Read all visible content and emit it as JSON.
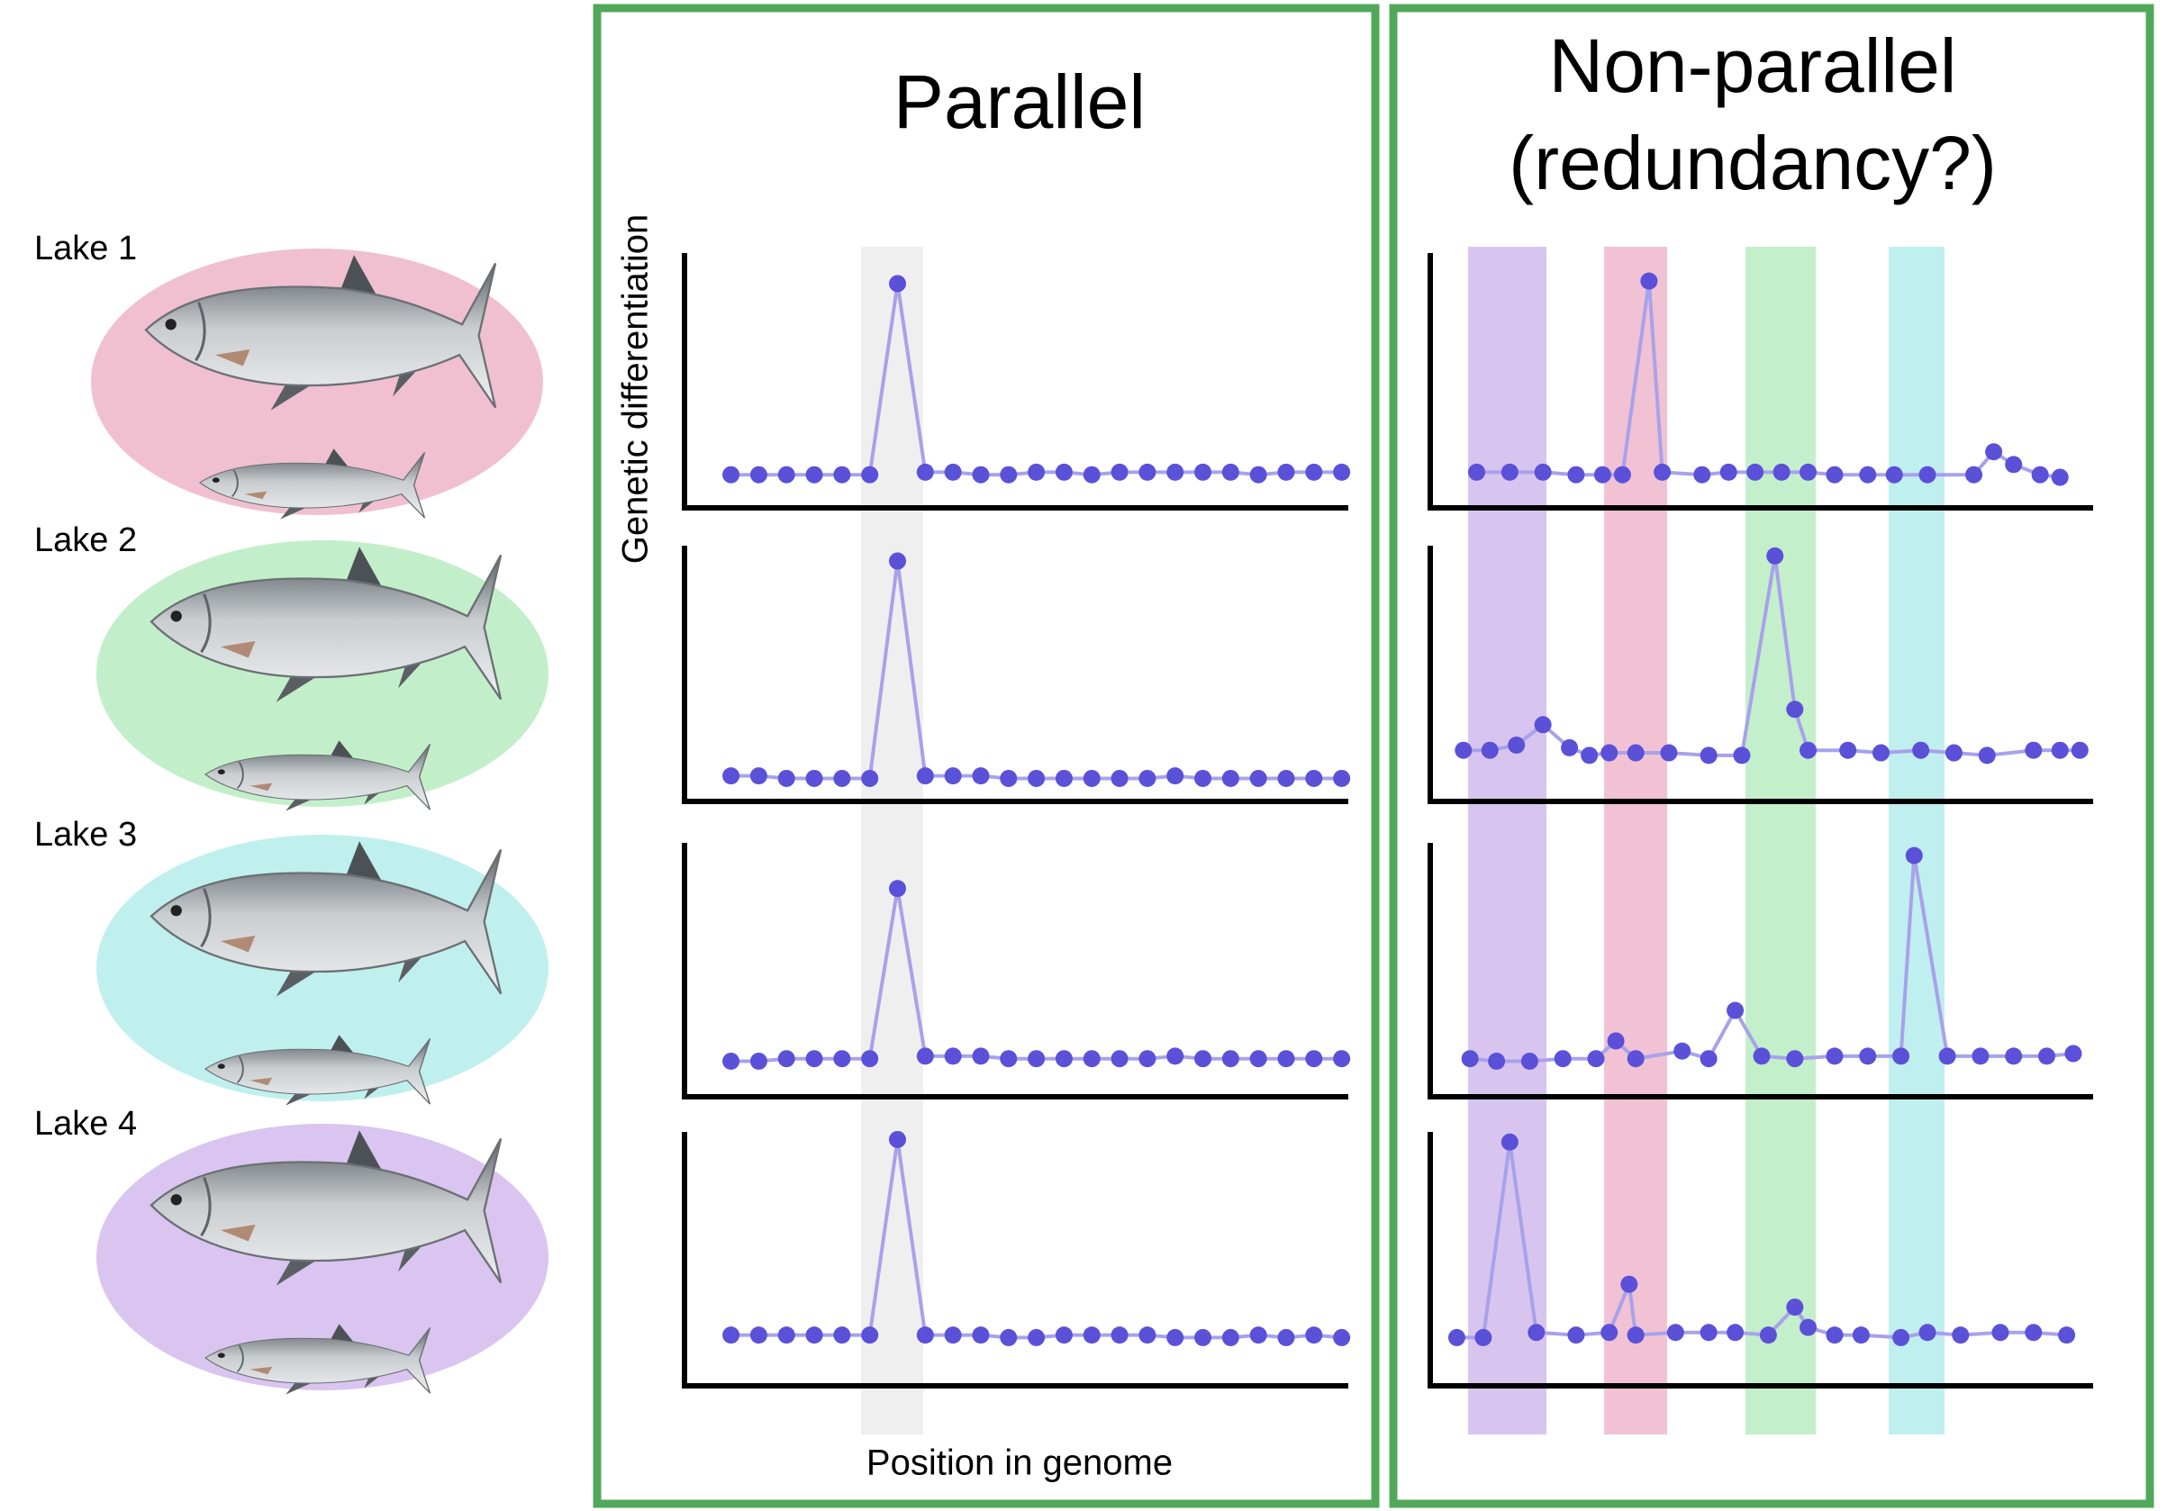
{
  "lakes": [
    "Lake 1",
    "Lake 2",
    "Lake 3",
    "Lake 4"
  ],
  "parallel": {
    "title": "Parallel",
    "y_label": "Genetic differentiation",
    "x_label": "Position in genome",
    "plots": [
      {
        "values": [
          13,
          13,
          13,
          13,
          13,
          13,
          88,
          14,
          14,
          13,
          13,
          14,
          14,
          13,
          14,
          14,
          14,
          14,
          14,
          13,
          14,
          14,
          14
        ]
      },
      {
        "values": [
          10,
          10,
          9,
          9,
          9,
          9,
          94,
          10,
          10,
          10,
          9,
          9,
          9,
          9,
          9,
          9,
          10,
          9,
          9,
          9,
          9,
          9,
          9
        ]
      },
      {
        "values": [
          14,
          14,
          15,
          15,
          15,
          15,
          82,
          16,
          16,
          16,
          15,
          15,
          15,
          15,
          15,
          15,
          16,
          15,
          15,
          15,
          15,
          15,
          15
        ]
      },
      {
        "values": [
          20,
          20,
          20,
          20,
          20,
          20,
          97,
          20,
          20,
          20,
          19,
          19,
          20,
          20,
          20,
          20,
          19,
          19,
          19,
          20,
          19,
          20,
          19
        ]
      }
    ]
  },
  "non_parallel": {
    "title": [
      "Non-parallel",
      "(redundancy?)"
    ],
    "plots": [
      {
        "x": [
          7,
          12,
          17,
          22,
          26,
          29,
          33,
          35,
          41,
          45,
          49,
          53,
          57,
          61,
          66,
          70,
          75,
          82,
          85,
          88,
          92,
          95
        ],
        "values": [
          14,
          14,
          14,
          13,
          13,
          13,
          89,
          14,
          13,
          14,
          14,
          14,
          14,
          13,
          13,
          13,
          13,
          13,
          22,
          17,
          13,
          12
        ]
      },
      {
        "x": [
          5,
          9,
          13,
          17,
          21,
          24,
          27,
          31,
          36,
          42,
          47,
          52,
          55,
          57,
          63,
          68,
          74,
          79,
          84,
          91,
          95,
          98
        ],
        "values": [
          20,
          20,
          22,
          30,
          21,
          18,
          19,
          19,
          19,
          18,
          18,
          96,
          36,
          20,
          20,
          19,
          20,
          19,
          18,
          20,
          20,
          20
        ]
      },
      {
        "x": [
          6,
          10,
          15,
          20,
          25,
          28,
          31,
          38,
          42,
          46,
          50,
          55,
          61,
          66,
          71,
          73,
          78,
          83,
          88,
          93,
          97
        ],
        "values": [
          15,
          14,
          14,
          15,
          15,
          22,
          15,
          18,
          15,
          34,
          16,
          15,
          16,
          16,
          16,
          95,
          16,
          16,
          16,
          16,
          17
        ]
      },
      {
        "x": [
          4,
          8,
          12,
          16,
          22,
          27,
          30,
          31,
          37,
          42,
          46,
          51,
          55,
          57,
          61,
          65,
          71,
          75,
          80,
          86,
          91,
          96
        ],
        "values": [
          19,
          19,
          96,
          21,
          20,
          21,
          40,
          20,
          21,
          21,
          21,
          20,
          31,
          23,
          20,
          20,
          19,
          21,
          20,
          21,
          21,
          20
        ]
      }
    ]
  }
}
